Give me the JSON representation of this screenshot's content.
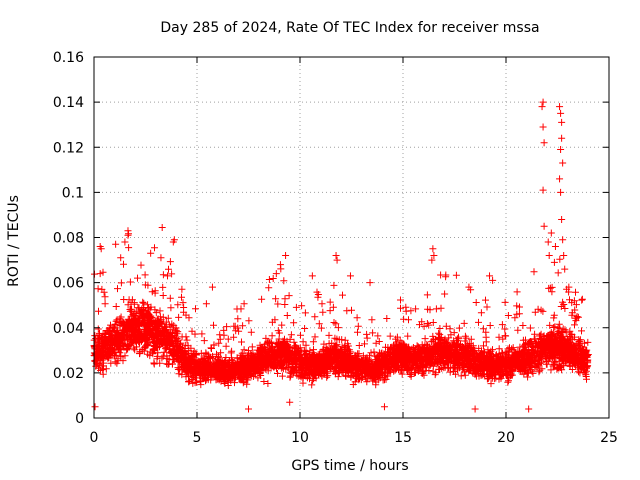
{
  "chart_data": {
    "type": "scatter",
    "title": "Day 285 of 2024, Rate Of TEC Index for receiver mssa",
    "xlabel": "GPS time / hours",
    "ylabel": "ROTI / TECUs",
    "xlim": [
      0,
      25
    ],
    "ylim": [
      0,
      0.16
    ],
    "x_ticks": [
      0,
      5,
      10,
      15,
      20,
      25
    ],
    "x_tick_labels": [
      "0",
      "5",
      "10",
      "15",
      "20",
      "25"
    ],
    "y_ticks": [
      0,
      0.02,
      0.04,
      0.06,
      0.08,
      0.1,
      0.12,
      0.14,
      0.16
    ],
    "y_tick_labels": [
      "0",
      "0.02",
      "0.04",
      "0.06",
      "0.08",
      "0.1",
      "0.12",
      "0.14",
      "0.16"
    ],
    "grid": true,
    "marker": "+",
    "color": "#ff0000",
    "x_data_range": [
      0,
      24
    ],
    "series": [
      {
        "name": "ROTI",
        "summary": "Dense scatter, mostly 0.005–0.05 TECUs across 0–24 h; elevated bands near 1.5–3 h, 9 h, 11.5 h, 16–18 h; strong spikes near 21.7 h (to 0.14) and 22.7 h (to 0.138)",
        "points": [
          [
            0.3,
            0.076
          ],
          [
            0.35,
            0.075
          ],
          [
            0.3,
            0.064
          ],
          [
            1.05,
            0.077
          ],
          [
            1.5,
            0.078
          ],
          [
            1.65,
            0.083
          ],
          [
            1.65,
            0.081
          ],
          [
            2.75,
            0.073
          ],
          [
            3.25,
            0.071
          ],
          [
            3.9,
            0.079
          ],
          [
            3.85,
            0.078
          ],
          [
            5.75,
            0.058
          ],
          [
            8.85,
            0.064
          ],
          [
            9.3,
            0.072
          ],
          [
            9.05,
            0.068
          ],
          [
            10.6,
            0.063
          ],
          [
            11.75,
            0.072
          ],
          [
            11.8,
            0.07
          ],
          [
            12.45,
            0.063
          ],
          [
            13.4,
            0.06
          ],
          [
            16.45,
            0.075
          ],
          [
            16.5,
            0.072
          ],
          [
            16.4,
            0.07
          ],
          [
            18.2,
            0.058
          ],
          [
            19.2,
            0.063
          ],
          [
            19.35,
            0.061
          ],
          [
            21.8,
            0.14
          ],
          [
            21.75,
            0.138
          ],
          [
            21.8,
            0.129
          ],
          [
            21.85,
            0.122
          ],
          [
            21.8,
            0.101
          ],
          [
            21.85,
            0.085
          ],
          [
            22.05,
            0.078
          ],
          [
            22.2,
            0.082
          ],
          [
            22.35,
            0.069
          ],
          [
            22.4,
            0.076
          ],
          [
            22.6,
            0.138
          ],
          [
            22.65,
            0.135
          ],
          [
            22.7,
            0.131
          ],
          [
            22.7,
            0.124
          ],
          [
            22.65,
            0.119
          ],
          [
            22.75,
            0.113
          ],
          [
            22.6,
            0.106
          ],
          [
            22.65,
            0.1
          ],
          [
            22.7,
            0.088
          ],
          [
            22.75,
            0.079
          ],
          [
            22.8,
            0.072
          ],
          [
            22.85,
            0.066
          ],
          [
            23.05,
            0.058
          ],
          [
            23.45,
            0.045
          ],
          [
            0.05,
            0.005
          ],
          [
            7.5,
            0.004
          ],
          [
            9.5,
            0.007
          ],
          [
            14.1,
            0.005
          ],
          [
            18.5,
            0.004
          ],
          [
            21.1,
            0.004
          ]
        ]
      }
    ]
  }
}
